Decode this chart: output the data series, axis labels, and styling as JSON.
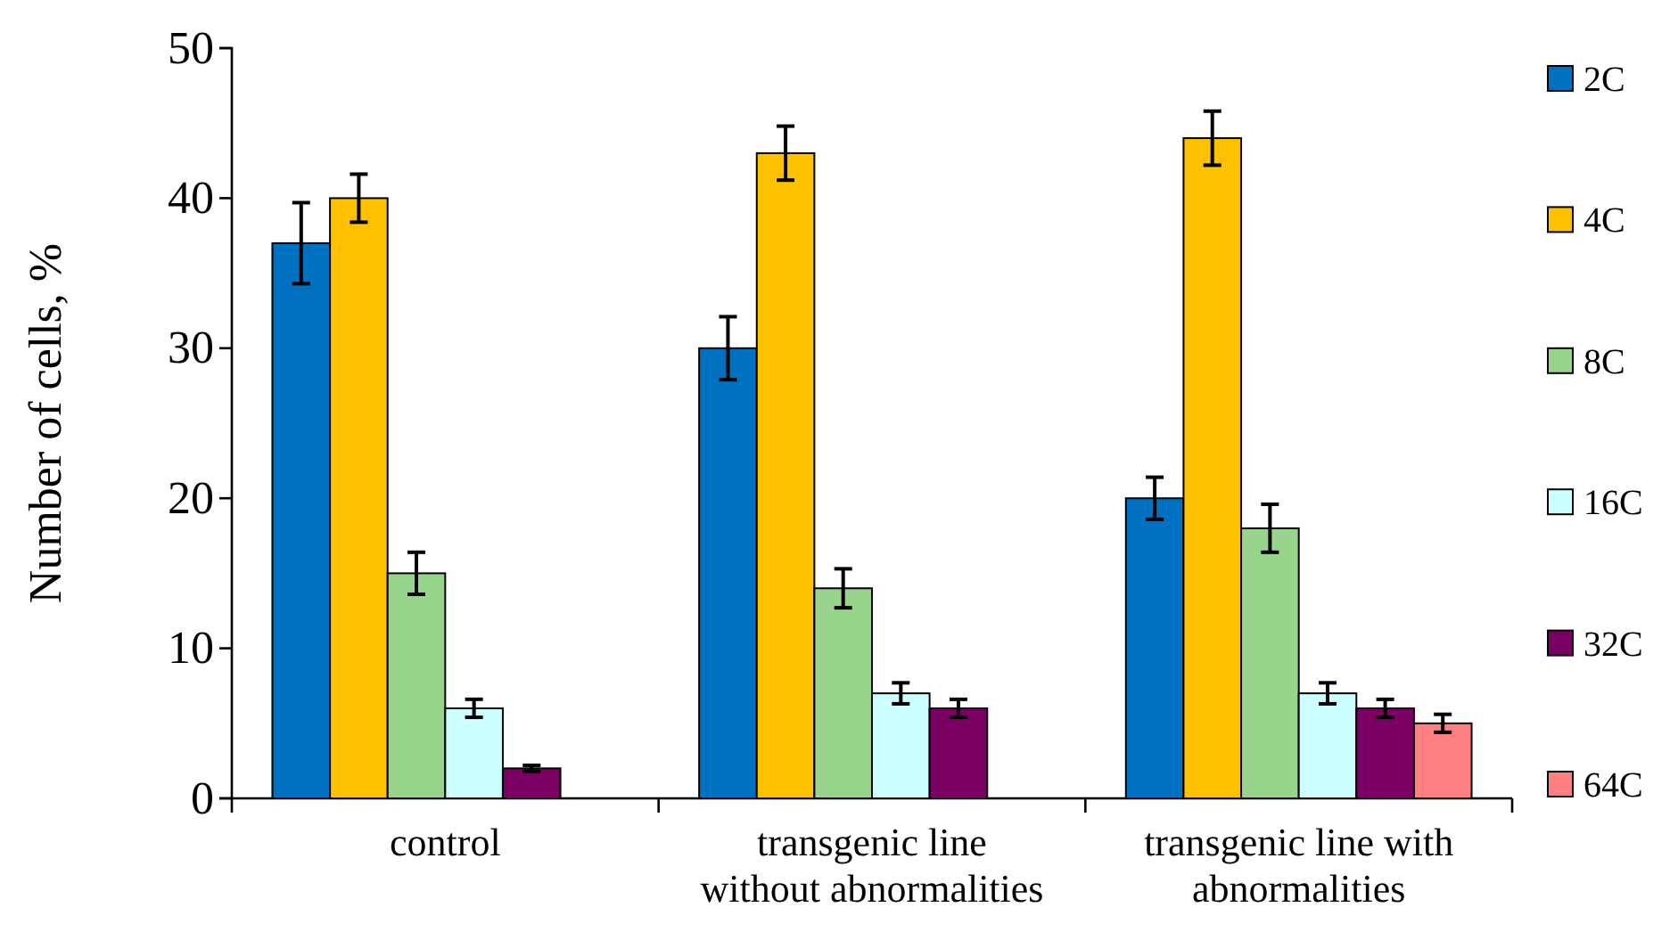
{
  "chart_data": {
    "type": "bar",
    "ylabel": "Number of cells, %",
    "categories": [
      "control",
      "transgenic line without abnormalities",
      "transgenic line with abnormalities"
    ],
    "series": [
      {
        "name": "2C",
        "color": "#0070c0",
        "values": [
          37,
          30,
          20
        ],
        "errors": [
          2.7,
          2.1,
          1.4
        ]
      },
      {
        "name": "4C",
        "color": "#ffc000",
        "values": [
          40,
          43,
          44
        ],
        "errors": [
          1.6,
          1.8,
          1.8
        ]
      },
      {
        "name": "8C",
        "color": "#98d48c",
        "values": [
          15,
          14,
          18
        ],
        "errors": [
          1.4,
          1.3,
          1.6
        ]
      },
      {
        "name": "16C",
        "color": "#ccffff",
        "values": [
          6,
          7,
          7
        ],
        "errors": [
          0.6,
          0.7,
          0.7
        ]
      },
      {
        "name": "32C",
        "color": "#7a0064",
        "values": [
          2,
          6,
          6
        ],
        "errors": [
          0.2,
          0.6,
          0.6
        ]
      },
      {
        "name": "64C",
        "color": "#ff8080",
        "values": [
          null,
          null,
          5
        ],
        "errors": [
          null,
          null,
          0.6
        ]
      }
    ],
    "ylim": [
      0,
      50
    ],
    "yticks": [
      0,
      10,
      20,
      30,
      40,
      50
    ],
    "grid": false,
    "legend": "right"
  }
}
